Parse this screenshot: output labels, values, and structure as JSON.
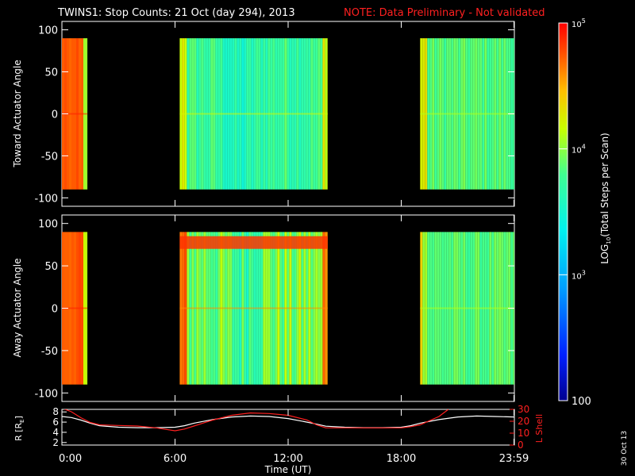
{
  "title": "TWINS1: Stop Counts: 21 Oct (day 294), 2013",
  "note": "NOTE: Data Preliminary - Not validated",
  "date_stamp": "30 Oct 13",
  "colors": {
    "background": "#000000",
    "axes": "#ffffff",
    "note": "#ff2020",
    "lshell": "#ff2020",
    "r_line": "#ffffff"
  },
  "colorbar": {
    "label": "LOG10(Total Steps per Scan)",
    "label_parts": [
      "LOG",
      "10",
      "(Total Steps per Scan)"
    ],
    "scale": "log",
    "range": [
      100,
      100000
    ],
    "ticks": [
      {
        "value": 100,
        "label": "100",
        "mant": "",
        "exp": ""
      },
      {
        "value": 1000,
        "label": "",
        "mant": "10",
        "exp": "3"
      },
      {
        "value": 10000,
        "label": "",
        "mant": "10",
        "exp": "4"
      },
      {
        "value": 100000,
        "label": "",
        "mant": "10",
        "exp": "5"
      }
    ],
    "colormap": "rainbow (blue-cyan-green-yellow-red)"
  },
  "x_axis": {
    "label": "Time (UT)",
    "range_hours": [
      0,
      24
    ],
    "ticks": [
      {
        "value": 0,
        "label": "0:00"
      },
      {
        "value": 6,
        "label": "6:00"
      },
      {
        "value": 12,
        "label": "12:00"
      },
      {
        "value": 18,
        "label": "18:00"
      },
      {
        "value": 23.98,
        "label": "23:59"
      }
    ]
  },
  "chart_data": [
    {
      "type": "heatmap",
      "title": "",
      "ylabel": "Toward Actuator Angle",
      "ylim": [
        -110,
        110
      ],
      "yticks": [
        100,
        50,
        0,
        -50,
        -100
      ],
      "angle_range": [
        -90,
        90
      ],
      "data_intervals_hours": [
        [
          0,
          1.35
        ],
        [
          6.25,
          14.1
        ],
        [
          19.0,
          24
        ]
      ],
      "typical_log10_counts": {
        "interval_1": [
          4.3,
          4.8
        ],
        "interval_2": [
          3.4,
          4.1
        ],
        "interval_3": [
          3.6,
          4.0
        ]
      },
      "max_level_log10": 5.0
    },
    {
      "type": "heatmap",
      "title": "",
      "ylabel": "Away Actuator Angle",
      "ylim": [
        -110,
        110
      ],
      "yticks": [
        100,
        50,
        0,
        -50,
        -100
      ],
      "angle_range": [
        -90,
        90
      ],
      "data_intervals_hours": [
        [
          0,
          1.35
        ],
        [
          6.25,
          14.1
        ],
        [
          19.0,
          24
        ]
      ],
      "typical_log10_counts": {
        "interval_1": [
          4.3,
          4.8
        ],
        "interval_2": [
          3.4,
          4.5
        ],
        "interval_3": [
          3.6,
          4.0
        ]
      },
      "max_level_log10": 5.0
    },
    {
      "type": "line",
      "ylabel": "R [RE]",
      "ylabel_parts": [
        "R [R",
        "E",
        "]"
      ],
      "y2label": "L Shell",
      "ylim": [
        1.5,
        8.5
      ],
      "yticks": [
        2,
        4,
        6,
        8
      ],
      "y2lim": [
        0,
        30
      ],
      "y2ticks": [
        0,
        10,
        20,
        30
      ],
      "series": [
        {
          "name": "R",
          "color": "#ffffff",
          "x": [
            0,
            0.5,
            1,
            1.5,
            2,
            3,
            4,
            5,
            6,
            6.5,
            7,
            8,
            9,
            10,
            11,
            12,
            13,
            13.5,
            14,
            15,
            16,
            17,
            18,
            18.5,
            19,
            20,
            21,
            22,
            23,
            24
          ],
          "y": [
            7.1,
            6.9,
            6.4,
            5.8,
            5.3,
            5.0,
            4.9,
            4.9,
            5.0,
            5.3,
            5.8,
            6.5,
            7.0,
            7.2,
            7.1,
            6.7,
            6.0,
            5.6,
            5.2,
            5.0,
            4.9,
            4.9,
            5.0,
            5.3,
            5.8,
            6.5,
            7.0,
            7.2,
            7.1,
            7.0
          ]
        },
        {
          "name": "L Shell",
          "color": "#ff2020",
          "axis": "right",
          "x": [
            0,
            0.5,
            1,
            1.5,
            2,
            3,
            4,
            5,
            6,
            6.5,
            7,
            8,
            9,
            10,
            11,
            12,
            13,
            13.5,
            14,
            15,
            16,
            17,
            18,
            18.5,
            19,
            20,
            20.5
          ],
          "y": [
            31,
            28,
            23,
            19,
            17,
            16.5,
            16,
            14.5,
            12,
            13.5,
            16,
            21,
            25,
            27,
            26.5,
            25,
            21,
            17,
            14.5,
            14.5,
            14.5,
            14.5,
            14.5,
            15.5,
            17,
            24,
            30
          ]
        }
      ]
    }
  ]
}
